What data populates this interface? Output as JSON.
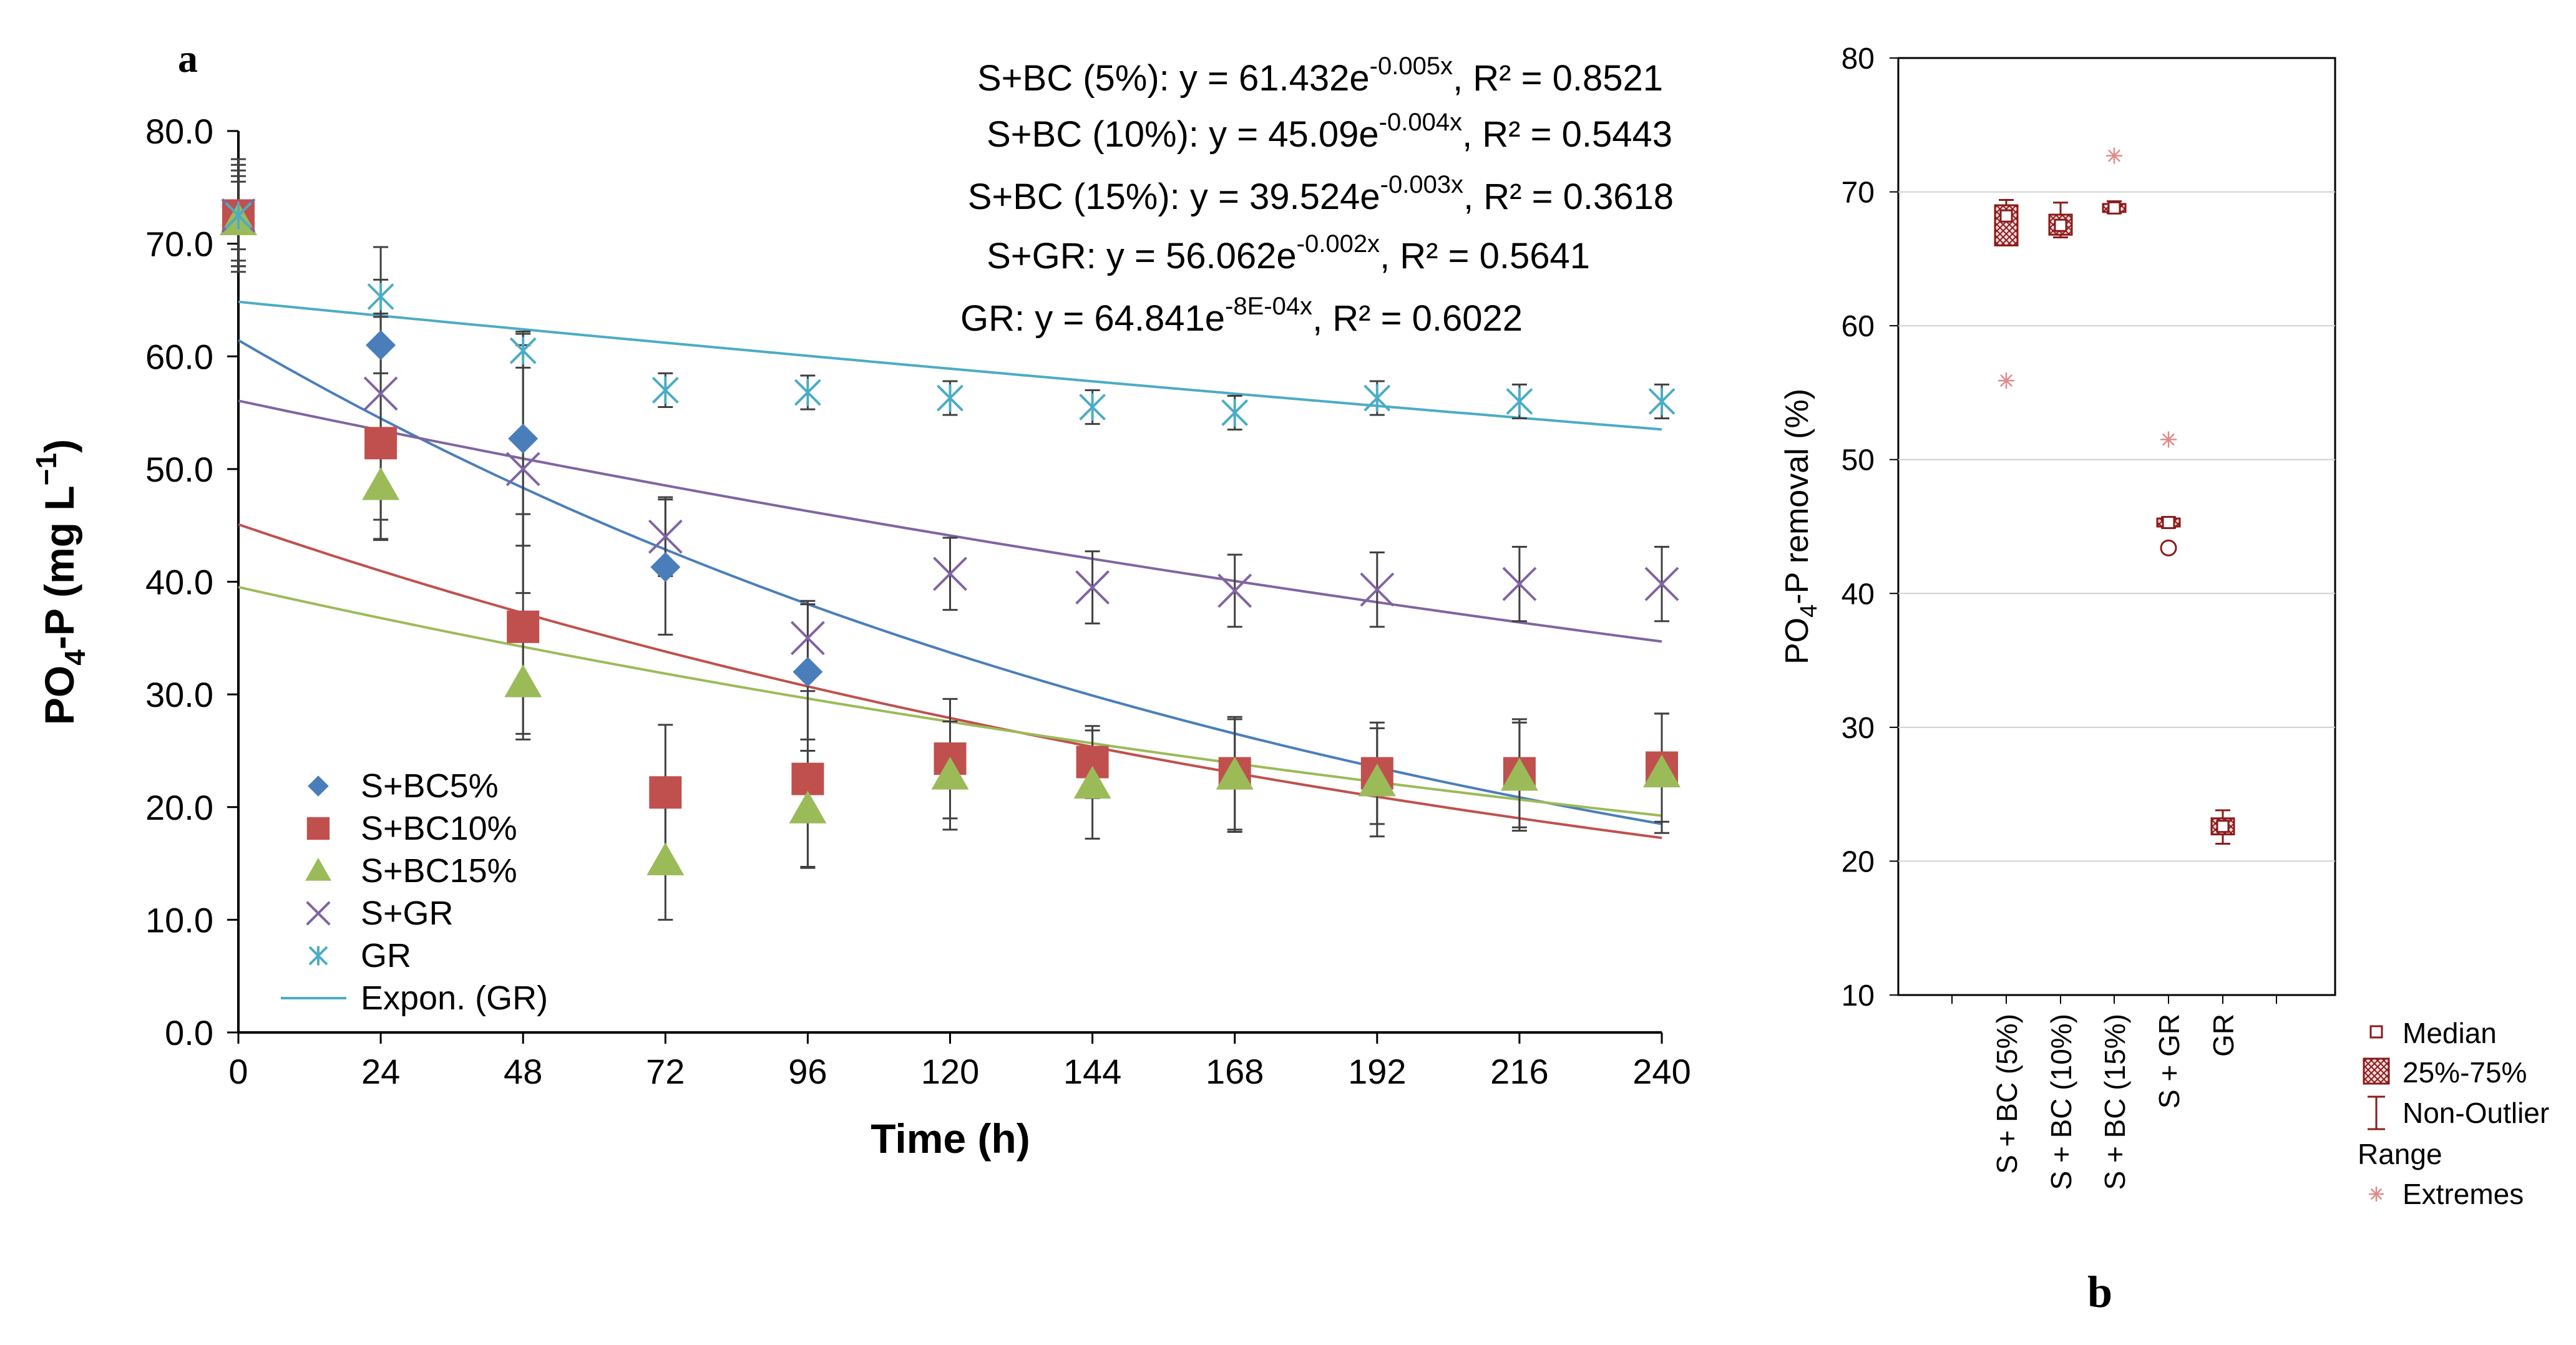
{
  "chart_data": [
    {
      "panel": "a",
      "type": "scatter",
      "title": "",
      "xlabel": "Time (h)",
      "ylabel": "PO4-P (mg L-1)",
      "ylabel_parts": {
        "base": "PO",
        "sub": "4",
        "mid": "-P (mg L",
        "sup": "−1",
        "end": ")"
      },
      "xlim": [
        0,
        240
      ],
      "ylim": [
        0,
        80
      ],
      "xticks": [
        0,
        24,
        48,
        72,
        96,
        120,
        144,
        168,
        192,
        216,
        240
      ],
      "yticks": [
        "0.0",
        "10.0",
        "20.0",
        "30.0",
        "40.0",
        "50.0",
        "60.0",
        "70.0",
        "80.0"
      ],
      "x": [
        0,
        24,
        48,
        72,
        96,
        120,
        144,
        168,
        192,
        216,
        240
      ],
      "series": [
        {
          "name": "S+BC5%",
          "key": "sbc5",
          "marker": "diamond",
          "color": "#4a7ebb",
          "values": [
            72.5,
            61.0,
            52.7,
            41.3,
            32.0,
            null,
            null,
            null,
            null,
            null,
            null
          ],
          "err": [
            5.0,
            2.5,
            9.5,
            6.0,
            6.0,
            null,
            null,
            null,
            null,
            null,
            null
          ]
        },
        {
          "name": "S+BC10%",
          "key": "sbc10",
          "marker": "square",
          "color": "#c0504d",
          "values": [
            72.5,
            52.3,
            36.0,
            21.3,
            22.5,
            24.3,
            24.0,
            23.0,
            23.0,
            23.0,
            23.5
          ],
          "err": [
            4.0,
            8.5,
            10.0,
            6.0,
            7.8,
            5.3,
            3.2,
            5.0,
            4.5,
            4.8,
            4.8
          ]
        },
        {
          "name": "S+BC15%",
          "key": "sbc15",
          "marker": "triangle",
          "color": "#9bbb59",
          "values": [
            72.0,
            48.5,
            31.0,
            15.2,
            19.8,
            22.8,
            22.0,
            22.8,
            22.2,
            22.7,
            23.0
          ],
          "err": [
            4.0,
            3.0,
            4.5,
            5.2,
            5.2,
            4.8,
            4.8,
            5.0,
            4.8,
            4.8,
            5.3
          ]
        },
        {
          "name": "S+GR",
          "key": "sgr",
          "marker": "x",
          "color": "#8064a2",
          "values": [
            72.5,
            56.7,
            50.0,
            44.0,
            35.0,
            40.7,
            39.5,
            39.2,
            39.3,
            39.8,
            39.8
          ],
          "err": [
            4.5,
            13.0,
            11.0,
            3.5,
            3.3,
            3.2,
            3.2,
            3.2,
            3.3,
            3.3,
            3.3
          ]
        },
        {
          "name": "GR",
          "key": "gr",
          "marker": "asterisk",
          "color": "#4bacc6",
          "values": [
            72.5,
            65.3,
            60.5,
            57.0,
            56.8,
            56.3,
            55.5,
            55.0,
            56.3,
            56.0,
            56.0
          ],
          "err": [
            3.0,
            1.5,
            1.5,
            1.5,
            1.5,
            1.5,
            1.5,
            1.5,
            1.5,
            1.5,
            1.5
          ]
        }
      ],
      "trendlines": [
        {
          "series": "S+BC (5%)",
          "color": "#4a7ebb",
          "a": 61.432,
          "b": -0.005,
          "a_text": "61.432",
          "b_text": "-0.005",
          "r2": "0.8521"
        },
        {
          "series": "S+BC (10%)",
          "color": "#c0504d",
          "a": 45.09,
          "b": -0.004,
          "a_text": "45.09",
          "b_text": "-0.004",
          "r2": "0.5443"
        },
        {
          "series": "S+BC (15%)",
          "color": "#9bbb59",
          "a": 39.524,
          "b": -0.003,
          "a_text": "39.524",
          "b_text": "-0.003",
          "r2": "0.3618"
        },
        {
          "series": "S+GR",
          "color": "#8064a2",
          "a": 56.062,
          "b": -0.002,
          "a_text": "56.062",
          "b_text": "-0.002",
          "r2": "0.5641"
        },
        {
          "series": "GR",
          "color": "#4bacc6",
          "a": 64.841,
          "b": -0.0008,
          "a_text": "64.841",
          "b_text": "-8E-04",
          "r2": "0.6022"
        }
      ],
      "equations": [
        {
          "label": "S+BC (5%):",
          "coef": "61.432",
          "exp": "-0.005x",
          "r2": "0.8521"
        },
        {
          "label": "S+BC (10%):",
          "coef": "45.09",
          "exp": "-0.004x",
          "r2": "0.5443"
        },
        {
          "label": "S+BC (15%):",
          "coef": "39.524",
          "exp": "-0.003x",
          "r2": "0.3618"
        },
        {
          "label": "S+GR:",
          "coef": "56.062",
          "exp": "-0.002x",
          "r2": "0.5641"
        },
        {
          "label": "GR:",
          "coef": "64.841",
          "exp": "-8E-04x",
          "r2": "0.6022"
        }
      ],
      "legend": {
        "position": "lower-left",
        "trend_label": "Expon. (GR)"
      }
    },
    {
      "panel": "b",
      "type": "box",
      "title": "",
      "ylabel": "PO4-P removal (%)",
      "ylabel_parts": {
        "base": "PO",
        "sub": "4",
        "end": "-P removal (%)"
      },
      "ylim": [
        10,
        80
      ],
      "yticks": [
        10,
        20,
        30,
        40,
        50,
        60,
        70,
        80
      ],
      "grid": true,
      "categories": [
        "S + BC (5%)",
        "S + BC (10%)",
        "S + BC (15%)",
        "S + GR",
        "GR"
      ],
      "boxes": [
        {
          "median": 68.2,
          "q1": 66.0,
          "q3": 69.0,
          "whisker_low": 66.0,
          "whisker_high": 69.4,
          "outliers": [],
          "extremes": [
            55.9
          ]
        },
        {
          "median": 67.5,
          "q1": 66.8,
          "q3": 68.3,
          "whisker_low": 66.6,
          "whisker_high": 69.2,
          "outliers": [],
          "extremes": []
        },
        {
          "median": 68.8,
          "q1": 68.5,
          "q3": 69.1,
          "whisker_low": 68.4,
          "whisker_high": 69.3,
          "outliers": [],
          "extremes": [
            72.7
          ]
        },
        {
          "median": 45.3,
          "q1": 45.0,
          "q3": 45.6,
          "whisker_low": 44.9,
          "whisker_high": 45.7,
          "outliers": [
            43.4
          ],
          "extremes": [
            51.5
          ]
        },
        {
          "median": 22.6,
          "q1": 22.0,
          "q3": 23.2,
          "whisker_low": 21.3,
          "whisker_high": 23.8,
          "outliers": [],
          "extremes": []
        }
      ],
      "legend": {
        "position": "lower-right",
        "entries": [
          "Median",
          "25%-75%",
          "Non-Outlier",
          "Range",
          "Extremes"
        ]
      }
    }
  ],
  "panel_labels": {
    "a": "a",
    "b": "b"
  }
}
